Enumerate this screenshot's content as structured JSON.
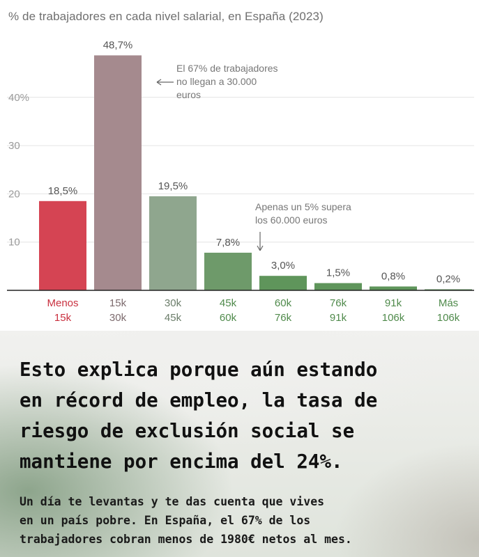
{
  "chart_data": {
    "type": "bar",
    "title": "% de trabajadores en cada nivel salarial, en España (2023)",
    "categories": [
      [
        "Menos",
        "15k"
      ],
      [
        "15k",
        "30k"
      ],
      [
        "30k",
        "45k"
      ],
      [
        "45k",
        "60k"
      ],
      [
        "60k",
        "76k"
      ],
      [
        "76k",
        "91k"
      ],
      [
        "91k",
        "106k"
      ],
      [
        "Más",
        "106k"
      ]
    ],
    "values": [
      18.5,
      48.7,
      19.5,
      7.8,
      3.0,
      1.5,
      0.8,
      0.2
    ],
    "value_labels": [
      "18,5%",
      "48,7%",
      "19,5%",
      "7,8%",
      "3,0%",
      "1,5%",
      "0,8%",
      "0,2%"
    ],
    "ylim": [
      0,
      50
    ],
    "yticks": [
      10,
      20,
      30,
      40
    ],
    "ytick_labels": [
      "10",
      "20",
      "30",
      "40%"
    ],
    "grid": "horizontal",
    "colors": [
      "#d54453",
      "#a58a8e",
      "#8fa68e",
      "#6e9a6a",
      "#5f955b",
      "#5f955b",
      "#5f955b",
      "#5f955b"
    ],
    "label_colors": [
      "#c9303f",
      "#7d6b6e",
      "#6b7d6a",
      "#4f8a4b",
      "#4f8a4b",
      "#4f8a4b",
      "#4f8a4b",
      "#4f8a4b"
    ],
    "annotations": [
      {
        "text": [
          "El 67% de trabajadores",
          "no llegan a 30.000",
          "euros"
        ],
        "arrow": "left",
        "target_category": "15k–30k"
      },
      {
        "text": [
          "Apenas un 5% supera",
          "los 60.000 euros"
        ],
        "arrow": "down",
        "target_category": "60k–76k"
      }
    ]
  },
  "caption": {
    "headline": "Esto explica porque aún estando\nen récord de empleo, la tasa de\nriesgo de exclusión social se\nmantiene por encima del 24%.",
    "subtext": "Un día te levantas y te das cuenta que vives\nen un país pobre. En España, el 67% de los\ntrabajadores cobran menos de 1980€ netos al mes."
  }
}
